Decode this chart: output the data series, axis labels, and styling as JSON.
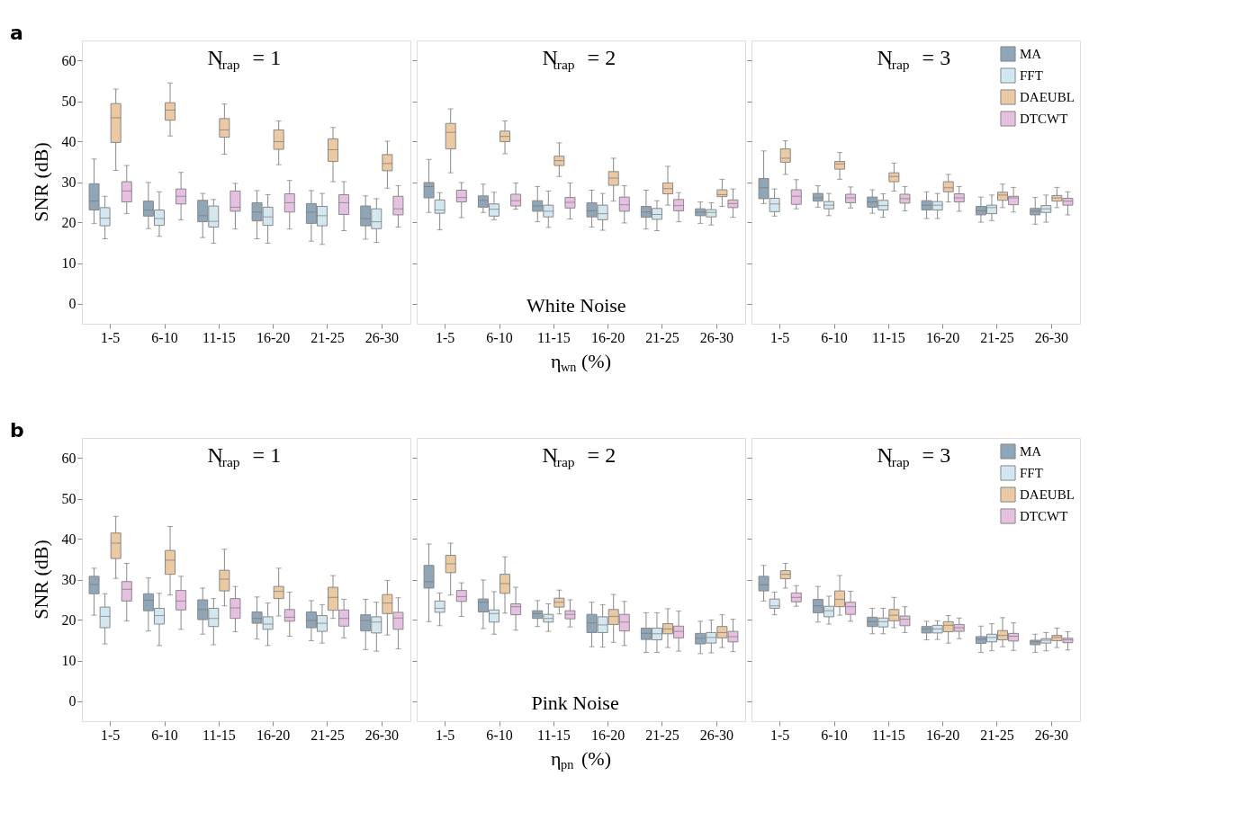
{
  "chart_data": [
    {
      "type": "box",
      "title": "N$_{trap}$ = 1",
      "ylabel": "SNR (dB)",
      "annotations": [
        "a"
      ],
      "categories": [
        "1-5",
        "6-10",
        "11-15",
        "16-20",
        "21-25",
        "26-30"
      ],
      "ylim": [
        -5,
        65
      ],
      "yticks": [
        0,
        10,
        20,
        30,
        40,
        50,
        60
      ],
      "tick_labels": "xy",
      "legend": false,
      "series": [
        {
          "name": "MA",
          "color": "#8fa5b8",
          "boxes": [
            {
              "low": 19.8,
              "q1": 23.1,
              "median": 25.3,
              "q3": 29.6,
              "high": 35.7
            },
            {
              "low": 18.5,
              "q1": 21.6,
              "median": 23.1,
              "q3": 25.3,
              "high": 29.9
            },
            {
              "low": 16.3,
              "q1": 20.2,
              "median": 21.7,
              "q3": 25.5,
              "high": 27.2
            },
            {
              "low": 16.0,
              "q1": 20.4,
              "median": 22.6,
              "q3": 24.9,
              "high": 27.9
            },
            {
              "low": 15.4,
              "q1": 19.8,
              "median": 22.6,
              "q3": 24.7,
              "high": 27.9
            },
            {
              "low": 15.9,
              "q1": 19.2,
              "median": 21.0,
              "q3": 24.1,
              "high": 26.6
            }
          ]
        },
        {
          "name": "FFT",
          "color": "#d2e7ef",
          "boxes": [
            {
              "low": 16.0,
              "q1": 19.2,
              "median": 21.1,
              "q3": 23.7,
              "high": 26.5
            },
            {
              "low": 16.6,
              "q1": 19.3,
              "median": 21.0,
              "q3": 23.1,
              "high": 27.6
            },
            {
              "low": 14.9,
              "q1": 18.9,
              "median": 20.3,
              "q3": 24.1,
              "high": 25.7
            },
            {
              "low": 14.9,
              "q1": 19.3,
              "median": 21.4,
              "q3": 23.8,
              "high": 26.9
            },
            {
              "low": 14.6,
              "q1": 19.2,
              "median": 21.7,
              "q3": 24.0,
              "high": 27.2
            },
            {
              "low": 15.1,
              "q1": 18.5,
              "median": 20.2,
              "q3": 23.4,
              "high": 25.9
            }
          ]
        },
        {
          "name": "DAEUBL",
          "color": "#eac9a3",
          "boxes": [
            {
              "low": 32.9,
              "q1": 39.8,
              "median": 45.9,
              "q3": 49.4,
              "high": 53.0
            },
            {
              "low": 41.4,
              "q1": 45.3,
              "median": 47.8,
              "q3": 49.6,
              "high": 54.5
            },
            {
              "low": 36.9,
              "q1": 41.1,
              "median": 42.9,
              "q3": 45.7,
              "high": 49.3
            },
            {
              "low": 34.3,
              "q1": 38.1,
              "median": 40.0,
              "q3": 42.9,
              "high": 45.1
            },
            {
              "low": 30.1,
              "q1": 35.1,
              "median": 38.0,
              "q3": 40.7,
              "high": 43.5
            },
            {
              "low": 28.5,
              "q1": 32.8,
              "median": 34.6,
              "q3": 36.8,
              "high": 40.1
            }
          ]
        },
        {
          "name": "DTCWT",
          "color": "#e6c0e0",
          "boxes": [
            {
              "low": 22.2,
              "q1": 25.1,
              "median": 27.8,
              "q3": 30.1,
              "high": 34.1
            },
            {
              "low": 20.7,
              "q1": 24.6,
              "median": 26.5,
              "q3": 28.3,
              "high": 32.4
            },
            {
              "low": 18.4,
              "q1": 22.8,
              "median": 23.8,
              "q3": 27.8,
              "high": 29.7
            },
            {
              "low": 18.4,
              "q1": 22.6,
              "median": 24.9,
              "q3": 27.1,
              "high": 30.4
            },
            {
              "low": 18.0,
              "q1": 22.0,
              "median": 24.9,
              "q3": 26.9,
              "high": 30.1
            },
            {
              "low": 18.9,
              "q1": 21.9,
              "median": 23.4,
              "q3": 26.5,
              "high": 29.1
            }
          ]
        }
      ]
    },
    {
      "type": "box",
      "title": "N$_{trap}$ = 2",
      "xlabel": "η$_{wn}$ (%)",
      "annotations": [
        "White Noise"
      ],
      "categories": [
        "1-5",
        "6-10",
        "11-15",
        "16-20",
        "21-25",
        "26-30"
      ],
      "ylim": [
        -5,
        65
      ],
      "yticks": [
        0,
        10,
        20,
        30,
        40,
        50,
        60
      ],
      "tick_labels": "x",
      "legend": false,
      "series": [
        {
          "name": "MA",
          "color": "#8fa5b8",
          "boxes": [
            {
              "low": 22.5,
              "q1": 26.1,
              "median": 28.9,
              "q3": 29.9,
              "high": 35.6
            },
            {
              "low": 22.5,
              "q1": 23.8,
              "median": 25.5,
              "q3": 26.6,
              "high": 29.5
            },
            {
              "low": 20.2,
              "q1": 22.8,
              "median": 24.1,
              "q3": 25.4,
              "high": 28.9
            },
            {
              "low": 18.9,
              "q1": 21.4,
              "median": 22.9,
              "q3": 24.9,
              "high": 28.0
            },
            {
              "low": 18.4,
              "q1": 21.3,
              "median": 22.6,
              "q3": 24.0,
              "high": 28.0
            },
            {
              "low": 19.8,
              "q1": 21.7,
              "median": 22.6,
              "q3": 23.4,
              "high": 25.1
            }
          ]
        },
        {
          "name": "FFT",
          "color": "#d2e7ef",
          "boxes": [
            {
              "low": 18.2,
              "q1": 22.3,
              "median": 23.1,
              "q3": 25.6,
              "high": 27.4
            },
            {
              "low": 20.7,
              "q1": 21.6,
              "median": 23.3,
              "q3": 24.6,
              "high": 27.5
            },
            {
              "low": 18.8,
              "q1": 21.4,
              "median": 22.8,
              "q3": 24.3,
              "high": 27.8
            },
            {
              "low": 18.1,
              "q1": 20.7,
              "median": 22.2,
              "q3": 24.3,
              "high": 27.2
            },
            {
              "low": 18.0,
              "q1": 20.8,
              "median": 22.0,
              "q3": 23.5,
              "high": 25.4
            },
            {
              "low": 19.4,
              "q1": 21.4,
              "median": 22.5,
              "q3": 23.2,
              "high": 24.9
            }
          ]
        },
        {
          "name": "DAEUBL",
          "color": "#eac9a3",
          "boxes": [
            {
              "low": 32.3,
              "q1": 38.2,
              "median": 42.3,
              "q3": 44.5,
              "high": 48.1
            },
            {
              "low": 37.0,
              "q1": 40.0,
              "median": 41.3,
              "q3": 42.6,
              "high": 45.1
            },
            {
              "low": 31.4,
              "q1": 34.1,
              "median": 35.3,
              "q3": 36.4,
              "high": 39.7
            },
            {
              "low": 25.3,
              "q1": 29.2,
              "median": 31.0,
              "q3": 32.6,
              "high": 35.9
            },
            {
              "low": 24.3,
              "q1": 27.1,
              "median": 28.4,
              "q3": 29.8,
              "high": 33.9
            },
            {
              "low": 24.0,
              "q1": 26.4,
              "median": 26.9,
              "q3": 28.1,
              "high": 30.7
            }
          ]
        },
        {
          "name": "DTCWT",
          "color": "#e6c0e0",
          "boxes": [
            {
              "low": 21.2,
              "q1": 25.1,
              "median": 26.2,
              "q3": 28.0,
              "high": 29.9
            },
            {
              "low": 23.3,
              "q1": 24.1,
              "median": 25.4,
              "q3": 27.0,
              "high": 29.8
            },
            {
              "low": 20.9,
              "q1": 23.6,
              "median": 25.0,
              "q3": 26.2,
              "high": 29.8
            },
            {
              "low": 19.9,
              "q1": 22.8,
              "median": 24.4,
              "q3": 26.3,
              "high": 29.1
            },
            {
              "low": 20.2,
              "q1": 22.9,
              "median": 24.2,
              "q3": 25.7,
              "high": 27.4
            },
            {
              "low": 21.3,
              "q1": 23.7,
              "median": 24.7,
              "q3": 25.6,
              "high": 28.3
            }
          ]
        }
      ]
    },
    {
      "type": "box",
      "title": "N$_{trap}$ = 3",
      "categories": [
        "1-5",
        "6-10",
        "11-15",
        "16-20",
        "21-25",
        "26-30"
      ],
      "ylim": [
        -5,
        65
      ],
      "yticks": [
        0,
        10,
        20,
        30,
        40,
        50,
        60
      ],
      "tick_labels": "x",
      "legend": "top right",
      "series": [
        {
          "name": "MA",
          "color": "#8fa5b8",
          "boxes": [
            {
              "low": 24.7,
              "q1": 25.9,
              "median": 28.6,
              "q3": 30.9,
              "high": 37.7
            },
            {
              "low": 23.8,
              "q1": 25.3,
              "median": 26.1,
              "q3": 27.2,
              "high": 29.1
            },
            {
              "low": 22.3,
              "q1": 23.8,
              "median": 25.1,
              "q3": 26.3,
              "high": 28.1
            },
            {
              "low": 21.0,
              "q1": 23.1,
              "median": 24.3,
              "q3": 25.4,
              "high": 27.6
            },
            {
              "low": 20.1,
              "q1": 21.9,
              "median": 22.9,
              "q3": 24.0,
              "high": 26.3
            },
            {
              "low": 19.6,
              "q1": 21.9,
              "median": 22.8,
              "q3": 23.5,
              "high": 26.2
            }
          ]
        },
        {
          "name": "FFT",
          "color": "#d2e7ef",
          "boxes": [
            {
              "low": 21.6,
              "q1": 22.7,
              "median": 24.6,
              "q3": 26.0,
              "high": 28.3
            },
            {
              "low": 21.7,
              "q1": 23.4,
              "median": 24.3,
              "q3": 25.2,
              "high": 27.2
            },
            {
              "low": 21.3,
              "q1": 23.1,
              "median": 24.2,
              "q3": 25.5,
              "high": 27.1
            },
            {
              "low": 21.0,
              "q1": 23.1,
              "median": 24.3,
              "q3": 25.2,
              "high": 27.2
            },
            {
              "low": 20.5,
              "q1": 22.2,
              "median": 23.7,
              "q3": 24.3,
              "high": 26.8
            },
            {
              "low": 20.1,
              "q1": 22.5,
              "median": 23.4,
              "q3": 24.2,
              "high": 26.8
            }
          ]
        },
        {
          "name": "DAEUBL",
          "color": "#eac9a3",
          "boxes": [
            {
              "low": 31.9,
              "q1": 34.9,
              "median": 35.9,
              "q3": 38.2,
              "high": 40.2
            },
            {
              "low": 30.7,
              "q1": 33.2,
              "median": 34.5,
              "q3": 35.1,
              "high": 37.3
            },
            {
              "low": 27.8,
              "q1": 30.1,
              "median": 31.4,
              "q3": 32.3,
              "high": 34.7
            },
            {
              "low": 25.1,
              "q1": 27.6,
              "median": 28.6,
              "q3": 30.1,
              "high": 31.9
            },
            {
              "low": 23.7,
              "q1": 25.5,
              "median": 26.8,
              "q3": 27.5,
              "high": 29.5
            },
            {
              "low": 23.7,
              "q1": 25.3,
              "median": 26.1,
              "q3": 26.7,
              "high": 28.7
            }
          ]
        },
        {
          "name": "DTCWT",
          "color": "#e6c0e0",
          "boxes": [
            {
              "low": 23.4,
              "q1": 24.5,
              "median": 26.5,
              "q3": 28.1,
              "high": 30.6
            },
            {
              "low": 23.6,
              "q1": 24.9,
              "median": 26.1,
              "q3": 27.0,
              "high": 28.8
            },
            {
              "low": 22.9,
              "q1": 24.8,
              "median": 25.9,
              "q3": 27.0,
              "high": 28.9
            },
            {
              "low": 22.8,
              "q1": 25.1,
              "median": 26.1,
              "q3": 27.1,
              "high": 28.9
            },
            {
              "low": 22.6,
              "q1": 24.4,
              "median": 26.1,
              "q3": 26.5,
              "high": 28.7
            },
            {
              "low": 21.9,
              "q1": 24.3,
              "median": 25.3,
              "q3": 26.0,
              "high": 27.6
            }
          ]
        }
      ]
    },
    {
      "type": "box",
      "title": "N$_{trap}$ = 1",
      "ylabel": "SNR (dB)",
      "annotations": [
        "b"
      ],
      "categories": [
        "1-5",
        "6-10",
        "11-15",
        "16-20",
        "21-25",
        "26-30"
      ],
      "ylim": [
        -5,
        65
      ],
      "yticks": [
        0,
        10,
        20,
        30,
        40,
        50,
        60
      ],
      "tick_labels": "xy",
      "legend": false,
      "series": [
        {
          "name": "MA",
          "color": "#8fa5b8",
          "boxes": [
            {
              "low": 21.2,
              "q1": 26.5,
              "median": 28.8,
              "q3": 30.8,
              "high": 32.8
            },
            {
              "low": 17.3,
              "q1": 22.3,
              "median": 24.9,
              "q3": 26.5,
              "high": 30.4
            },
            {
              "low": 16.5,
              "q1": 20.1,
              "median": 22.6,
              "q3": 25.0,
              "high": 27.9
            },
            {
              "low": 15.3,
              "q1": 19.2,
              "median": 20.4,
              "q3": 22.0,
              "high": 25.7
            },
            {
              "low": 14.9,
              "q1": 18.1,
              "median": 19.9,
              "q3": 22.0,
              "high": 24.8
            },
            {
              "low": 12.7,
              "q1": 17.3,
              "median": 19.9,
              "q3": 21.3,
              "high": 25.1
            }
          ]
        },
        {
          "name": "FFT",
          "color": "#d2e7ef",
          "boxes": [
            {
              "low": 14.1,
              "q1": 18.1,
              "median": 20.9,
              "q3": 23.2,
              "high": 26.5
            },
            {
              "low": 13.7,
              "q1": 19.0,
              "median": 21.1,
              "q3": 22.9,
              "high": 26.6
            },
            {
              "low": 13.9,
              "q1": 18.4,
              "median": 20.4,
              "q3": 22.9,
              "high": 25.3
            },
            {
              "low": 13.7,
              "q1": 17.7,
              "median": 19.0,
              "q3": 20.8,
              "high": 24.2
            },
            {
              "low": 14.3,
              "q1": 17.2,
              "median": 19.2,
              "q3": 21.1,
              "high": 23.8
            },
            {
              "low": 12.3,
              "q1": 16.8,
              "median": 19.5,
              "q3": 20.8,
              "high": 24.4
            }
          ]
        },
        {
          "name": "DAEUBL",
          "color": "#eac9a3",
          "boxes": [
            {
              "low": 30.3,
              "q1": 35.2,
              "median": 39.0,
              "q3": 41.5,
              "high": 45.6
            },
            {
              "low": 26.2,
              "q1": 31.3,
              "median": 34.8,
              "q3": 37.2,
              "high": 43.1
            },
            {
              "low": 23.5,
              "q1": 27.2,
              "median": 30.1,
              "q3": 32.3,
              "high": 37.5
            },
            {
              "low": 21.0,
              "q1": 25.3,
              "median": 27.1,
              "q3": 28.3,
              "high": 32.8
            },
            {
              "low": 20.4,
              "q1": 22.4,
              "median": 25.6,
              "q3": 28.1,
              "high": 31.0
            },
            {
              "low": 16.3,
              "q1": 21.6,
              "median": 24.2,
              "q3": 26.3,
              "high": 29.8
            }
          ]
        },
        {
          "name": "DTCWT",
          "color": "#e6c0e0",
          "boxes": [
            {
              "low": 19.8,
              "q1": 24.7,
              "median": 27.6,
              "q3": 29.5,
              "high": 34.0
            },
            {
              "low": 17.7,
              "q1": 22.5,
              "median": 24.7,
              "q3": 27.3,
              "high": 30.8
            },
            {
              "low": 17.1,
              "q1": 20.4,
              "median": 23.0,
              "q3": 25.3,
              "high": 28.3
            },
            {
              "low": 16.0,
              "q1": 19.7,
              "median": 20.7,
              "q3": 22.6,
              "high": 26.9
            },
            {
              "low": 15.6,
              "q1": 18.5,
              "median": 20.4,
              "q3": 22.5,
              "high": 25.1
            },
            {
              "low": 12.9,
              "q1": 17.7,
              "median": 20.5,
              "q3": 21.9,
              "high": 25.5
            }
          ]
        }
      ]
    },
    {
      "type": "box",
      "title": "N$_{trap}$ = 2",
      "xlabel": "η$_{pn}$ (%)",
      "annotations": [
        "Pink Noise"
      ],
      "categories": [
        "1-5",
        "6-10",
        "11-15",
        "16-20",
        "21-25",
        "26-30"
      ],
      "ylim": [
        -5,
        65
      ],
      "yticks": [
        0,
        10,
        20,
        30,
        40,
        50,
        60
      ],
      "tick_labels": "x",
      "legend": false,
      "series": [
        {
          "name": "MA",
          "color": "#8fa5b8",
          "boxes": [
            {
              "low": 19.6,
              "q1": 27.9,
              "median": 29.5,
              "q3": 33.5,
              "high": 38.8
            },
            {
              "low": 17.9,
              "q1": 22.0,
              "median": 24.4,
              "q3": 25.2,
              "high": 29.9
            },
            {
              "low": 18.4,
              "q1": 20.4,
              "median": 21.6,
              "q3": 22.3,
              "high": 24.8
            },
            {
              "low": 13.4,
              "q1": 16.9,
              "median": 19.3,
              "q3": 21.4,
              "high": 24.4
            },
            {
              "low": 12.0,
              "q1": 15.2,
              "median": 16.7,
              "q3": 18.0,
              "high": 21.8
            },
            {
              "low": 11.7,
              "q1": 14.1,
              "median": 15.5,
              "q3": 16.7,
              "high": 19.7
            }
          ]
        },
        {
          "name": "FFT",
          "color": "#d2e7ef",
          "boxes": [
            {
              "low": 18.6,
              "q1": 21.9,
              "median": 22.9,
              "q3": 24.7,
              "high": 26.7
            },
            {
              "low": 16.5,
              "q1": 19.5,
              "median": 21.6,
              "q3": 22.5,
              "high": 27.0
            },
            {
              "low": 17.2,
              "q1": 19.5,
              "median": 20.4,
              "q3": 21.4,
              "high": 24.0
            },
            {
              "low": 13.3,
              "q1": 16.9,
              "median": 18.8,
              "q3": 20.8,
              "high": 23.8
            },
            {
              "low": 12.0,
              "q1": 15.1,
              "median": 16.6,
              "q3": 18.0,
              "high": 21.8
            },
            {
              "low": 11.9,
              "q1": 14.3,
              "median": 15.7,
              "q3": 16.9,
              "high": 20.0
            }
          ]
        },
        {
          "name": "DAEUBL",
          "color": "#eac9a3",
          "boxes": [
            {
              "low": 26.2,
              "q1": 31.7,
              "median": 33.9,
              "q3": 36.0,
              "high": 39.0
            },
            {
              "low": 21.7,
              "q1": 26.6,
              "median": 29.0,
              "q3": 31.3,
              "high": 35.6
            },
            {
              "low": 21.5,
              "q1": 23.2,
              "median": 24.4,
              "q3": 25.4,
              "high": 27.4
            },
            {
              "low": 14.5,
              "q1": 18.9,
              "median": 20.9,
              "q3": 22.6,
              "high": 26.3
            },
            {
              "low": 13.2,
              "q1": 16.6,
              "median": 17.8,
              "q3": 19.1,
              "high": 22.8
            },
            {
              "low": 13.2,
              "q1": 15.6,
              "median": 16.9,
              "q3": 18.4,
              "high": 21.3
            }
          ]
        },
        {
          "name": "DTCWT",
          "color": "#e6c0e0",
          "boxes": [
            {
              "low": 20.9,
              "q1": 24.6,
              "median": 25.8,
              "q3": 27.3,
              "high": 29.2
            },
            {
              "low": 17.5,
              "q1": 21.3,
              "median": 23.3,
              "q3": 24.0,
              "high": 28.1
            },
            {
              "low": 18.3,
              "q1": 20.3,
              "median": 21.4,
              "q3": 22.3,
              "high": 25.0
            },
            {
              "low": 13.7,
              "q1": 17.3,
              "median": 19.5,
              "q3": 21.4,
              "high": 24.6
            },
            {
              "low": 12.3,
              "q1": 15.6,
              "median": 17.2,
              "q3": 18.5,
              "high": 22.2
            },
            {
              "low": 12.2,
              "q1": 14.6,
              "median": 15.9,
              "q3": 17.2,
              "high": 20.2
            }
          ]
        }
      ]
    },
    {
      "type": "box",
      "title": "N$_{trap}$ = 3",
      "categories": [
        "1-5",
        "6-10",
        "11-15",
        "16-20",
        "21-25",
        "26-30"
      ],
      "ylim": [
        -5,
        65
      ],
      "yticks": [
        0,
        10,
        20,
        30,
        40,
        50,
        60
      ],
      "tick_labels": "x",
      "legend": "top right",
      "series": [
        {
          "name": "MA",
          "color": "#8fa5b8",
          "boxes": [
            {
              "low": 24.7,
              "q1": 27.2,
              "median": 28.7,
              "q3": 30.8,
              "high": 33.5
            },
            {
              "low": 19.5,
              "q1": 21.8,
              "median": 23.5,
              "q3": 25.1,
              "high": 28.3
            },
            {
              "low": 16.6,
              "q1": 18.4,
              "median": 19.6,
              "q3": 20.7,
              "high": 22.9
            },
            {
              "low": 15.1,
              "q1": 16.8,
              "median": 17.8,
              "q3": 18.4,
              "high": 19.7
            },
            {
              "low": 12.0,
              "q1": 14.2,
              "median": 15.3,
              "q3": 15.9,
              "high": 18.5
            },
            {
              "low": 12.0,
              "q1": 13.9,
              "median": 14.6,
              "q3": 15.0,
              "high": 16.5
            }
          ]
        },
        {
          "name": "FFT",
          "color": "#d2e7ef",
          "boxes": [
            {
              "low": 21.3,
              "q1": 22.9,
              "median": 23.5,
              "q3": 25.2,
              "high": 26.9
            },
            {
              "low": 19.0,
              "q1": 20.8,
              "median": 22.3,
              "q3": 23.4,
              "high": 25.9
            },
            {
              "low": 16.6,
              "q1": 18.3,
              "median": 19.6,
              "q3": 20.5,
              "high": 22.9
            },
            {
              "low": 15.2,
              "q1": 16.8,
              "median": 17.8,
              "q3": 18.7,
              "high": 19.8
            },
            {
              "low": 12.4,
              "q1": 14.6,
              "median": 15.7,
              "q3": 16.5,
              "high": 19.1
            },
            {
              "low": 12.4,
              "q1": 14.3,
              "median": 15.0,
              "q3": 15.4,
              "high": 16.9
            }
          ]
        },
        {
          "name": "DAEUBL",
          "color": "#eac9a3",
          "boxes": [
            {
              "low": 27.9,
              "q1": 30.2,
              "median": 31.3,
              "q3": 32.2,
              "high": 34.0
            },
            {
              "low": 21.2,
              "q1": 23.3,
              "median": 25.1,
              "q3": 27.2,
              "high": 31.0
            },
            {
              "low": 18.1,
              "q1": 19.8,
              "median": 21.2,
              "q3": 22.6,
              "high": 25.6
            },
            {
              "low": 14.3,
              "q1": 17.1,
              "median": 18.7,
              "q3": 19.6,
              "high": 21.1
            },
            {
              "low": 13.4,
              "q1": 15.1,
              "median": 16.2,
              "q3": 17.4,
              "high": 20.6
            },
            {
              "low": 13.2,
              "q1": 14.9,
              "median": 15.7,
              "q3": 16.2,
              "high": 18.0
            }
          ]
        },
        {
          "name": "DTCWT",
          "color": "#e6c0e0",
          "boxes": [
            {
              "low": 23.4,
              "q1": 24.5,
              "median": 25.6,
              "q3": 26.7,
              "high": 28.5
            },
            {
              "low": 19.7,
              "q1": 21.4,
              "median": 23.3,
              "q3": 24.4,
              "high": 27.1
            },
            {
              "low": 16.9,
              "q1": 18.6,
              "median": 20.2,
              "q3": 21.0,
              "high": 23.3
            },
            {
              "low": 15.4,
              "q1": 17.2,
              "median": 18.1,
              "q3": 18.9,
              "high": 20.5
            },
            {
              "low": 12.5,
              "q1": 14.8,
              "median": 16.0,
              "q3": 16.7,
              "high": 19.3
            },
            {
              "low": 12.6,
              "q1": 14.4,
              "median": 15.1,
              "q3": 15.5,
              "high": 17.1
            }
          ]
        }
      ]
    }
  ]
}
